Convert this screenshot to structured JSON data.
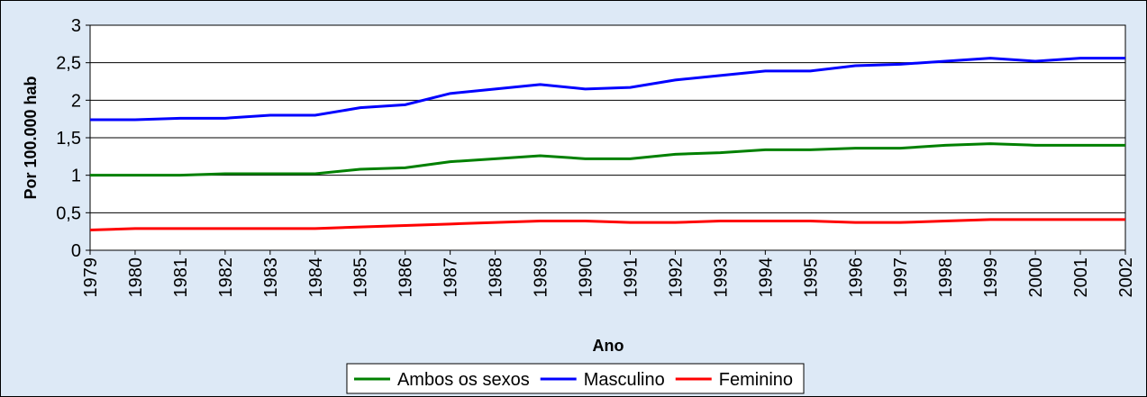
{
  "chart_data": {
    "type": "line",
    "x_label": "Ano",
    "y_label": "Por 100.000 hab",
    "categories": [
      "1979",
      "1980",
      "1981",
      "1982",
      "1983",
      "1984",
      "1985",
      "1986",
      "1987",
      "1988",
      "1989",
      "1990",
      "1991",
      "1992",
      "1993",
      "1994",
      "1995",
      "1996",
      "1997",
      "1998",
      "1999",
      "2000",
      "2001",
      "2002"
    ],
    "series": [
      {
        "name": "Ambos os sexos",
        "color": "#008000",
        "values": [
          1.0,
          1.0,
          1.0,
          1.02,
          1.02,
          1.02,
          1.08,
          1.1,
          1.18,
          1.22,
          1.26,
          1.22,
          1.22,
          1.28,
          1.3,
          1.34,
          1.34,
          1.36,
          1.36,
          1.4,
          1.42,
          1.4,
          1.4,
          1.4
        ]
      },
      {
        "name": "Masculino",
        "color": "#0000ff",
        "values": [
          1.74,
          1.74,
          1.76,
          1.76,
          1.8,
          1.8,
          1.9,
          1.94,
          2.09,
          2.15,
          2.21,
          2.15,
          2.17,
          2.27,
          2.33,
          2.39,
          2.39,
          2.46,
          2.48,
          2.52,
          2.56,
          2.52,
          2.56,
          2.56
        ]
      },
      {
        "name": "Feminino",
        "color": "#ff0000",
        "values": [
          0.27,
          0.29,
          0.29,
          0.29,
          0.29,
          0.29,
          0.31,
          0.33,
          0.35,
          0.37,
          0.39,
          0.39,
          0.37,
          0.37,
          0.39,
          0.39,
          0.39,
          0.37,
          0.37,
          0.39,
          0.41,
          0.41,
          0.41,
          0.41
        ]
      }
    ],
    "ylim": [
      0,
      3
    ],
    "yticks": [
      0,
      {
        "value": 0.5,
        "label": "0,5"
      },
      1,
      {
        "value": 1.5,
        "label": "1,5"
      },
      2,
      {
        "value": 2.5,
        "label": "2,5"
      },
      3
    ],
    "grid": true,
    "legend": "bottom"
  }
}
